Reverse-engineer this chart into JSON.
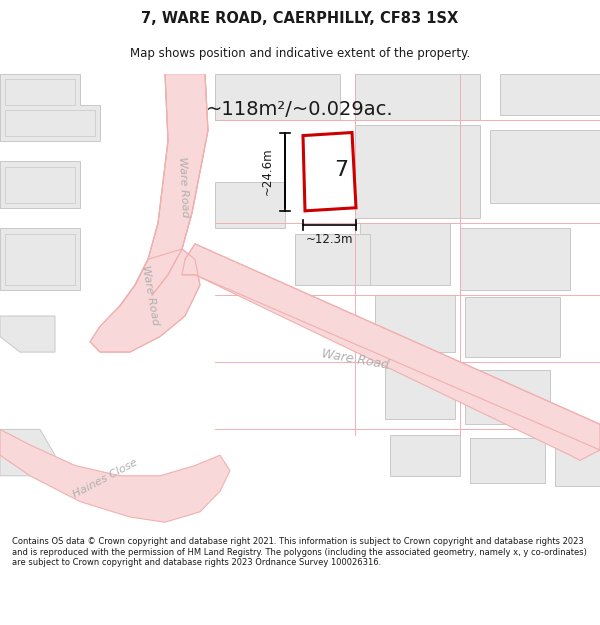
{
  "title_line1": "7, WARE ROAD, CAERPHILLY, CF83 1SX",
  "title_line2": "Map shows position and indicative extent of the property.",
  "area_text": "~118m²/~0.029ac.",
  "plot_number": "7",
  "dim_width": "~12.3m",
  "dim_height": "~24.6m",
  "road_label_ware1": "Ware Road",
  "road_label_ware2": "Ware Road",
  "road_label_ware3": "Ware Road",
  "haines_close": "Haines Close",
  "copyright_text": "Contains OS data © Crown copyright and database right 2021. This information is subject to Crown copyright and database rights 2023 and is reproduced with the permission of HM Land Registry. The polygons (including the associated geometry, namely x, y co-ordinates) are subject to Crown copyright and database rights 2023 Ordnance Survey 100026316.",
  "bg_color": "#ffffff",
  "map_bg": "#ffffff",
  "road_line_color": "#f0b0b0",
  "road_fill_color": "#f8d8d8",
  "highlight_color": "#cc0000",
  "block_fill": "#e8e8e8",
  "block_stroke": "#c8c8c8",
  "road_label_color": "#b0b0b0",
  "text_color": "#1a1a1a",
  "footer_bg": "#f0f0f0"
}
